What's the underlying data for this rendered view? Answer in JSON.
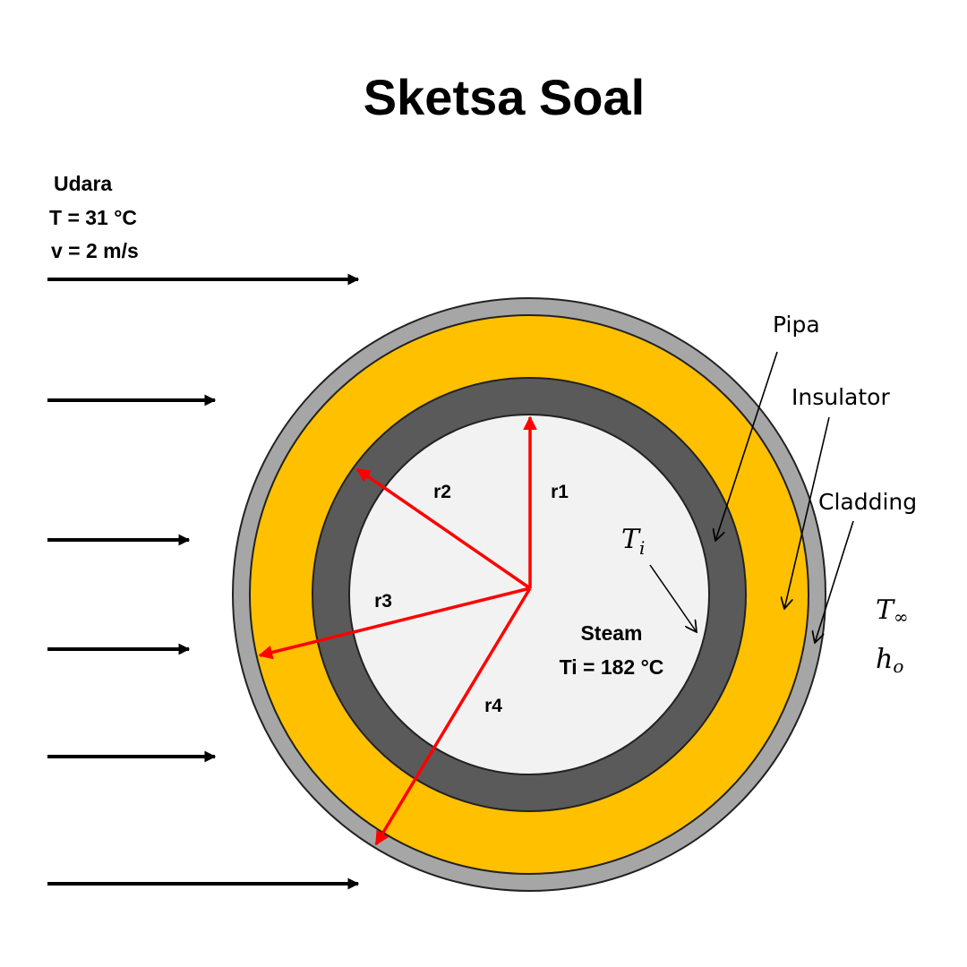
{
  "title": "Sketsa Soal",
  "air": {
    "label": "Udara",
    "temperature": "T = 31 °C",
    "velocity": "v = 2 m/s"
  },
  "steam": {
    "label": "Steam",
    "temperature": "Ti = 182 °C"
  },
  "radii": {
    "r1": "r1",
    "r2": "r2",
    "r3": "r3",
    "r4": "r4"
  },
  "layers": {
    "pipe": "Pipa",
    "insulator": "Insulator",
    "cladding": "Cladding"
  },
  "symbols": {
    "t_inner": "T",
    "t_inner_sub": "i",
    "t_inf": "T",
    "t_inf_sub": "∞",
    "h_outer": "h",
    "h_outer_sub": "o"
  },
  "colors": {
    "steam_core": "#f2f2f2",
    "pipe_wall": "#5a5a5a",
    "insulator": "#ffc000",
    "cladding": "#a6a6a6",
    "radius_arrow": "#ff0000",
    "air_arrow": "#000000"
  }
}
